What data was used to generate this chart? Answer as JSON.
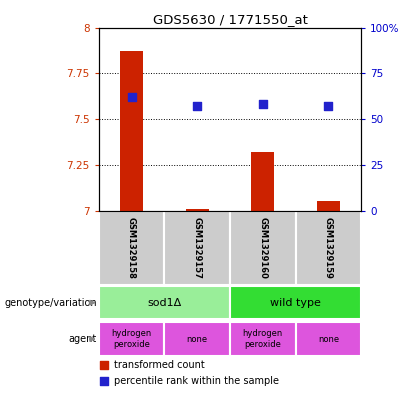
{
  "title": "GDS5630 / 1771550_at",
  "samples": [
    "GSM1329158",
    "GSM1329157",
    "GSM1329160",
    "GSM1329159"
  ],
  "transformed_counts": [
    7.87,
    7.01,
    7.32,
    7.05
  ],
  "percentile_ranks": [
    62,
    57,
    58,
    57
  ],
  "ylim_left": [
    7.0,
    8.0
  ],
  "ylim_right": [
    0,
    100
  ],
  "yticks_left": [
    7.0,
    7.25,
    7.5,
    7.75,
    8.0
  ],
  "yticks_right": [
    0,
    25,
    50,
    75,
    100
  ],
  "bar_color": "#cc2200",
  "dot_color": "#2222cc",
  "genotype_variation": [
    {
      "label": "sod1Δ",
      "span": [
        0,
        2
      ],
      "color": "#99ee99"
    },
    {
      "label": "wild type",
      "span": [
        2,
        4
      ],
      "color": "#33dd33"
    }
  ],
  "agent": [
    {
      "label": "hydrogen\nperoxide",
      "span": [
        0,
        1
      ],
      "color": "#dd55dd"
    },
    {
      "label": "none",
      "span": [
        1,
        2
      ],
      "color": "#dd55dd"
    },
    {
      "label": "hydrogen\nperoxide",
      "span": [
        2,
        3
      ],
      "color": "#dd55dd"
    },
    {
      "label": "none",
      "span": [
        3,
        4
      ],
      "color": "#dd55dd"
    }
  ],
  "legend_bar_label": "transformed count",
  "legend_dot_label": "percentile rank within the sample",
  "left_tick_color": "#cc3300",
  "right_tick_color": "#0000cc",
  "annotation_genotype": "genotype/variation",
  "annotation_agent": "agent",
  "bar_width": 0.35,
  "dot_size": 40,
  "sample_label_color": "#cccccc",
  "label_row_separator_color": "white"
}
